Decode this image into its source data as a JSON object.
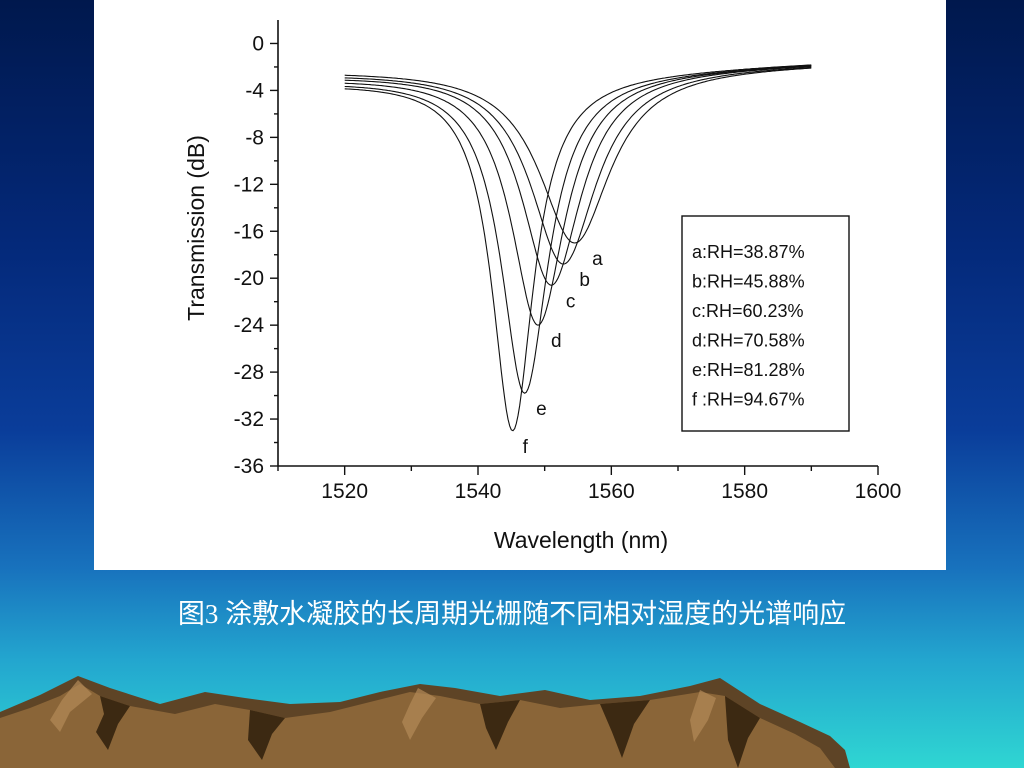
{
  "caption": "图3 涂敷水凝胶的长周期光栅随不同相对湿度的光谱响应",
  "colors": {
    "background_top": "#00184d",
    "background_bottom": "#2fd6d2",
    "caption": "#ffffff",
    "mountain_brown": "#7a5a34",
    "mountain_shadow": "#2e1e0c"
  },
  "chart_data": {
    "type": "line",
    "xlabel": "Wavelength (nm)",
    "ylabel": "Transmission (dB)",
    "xlim": [
      1510,
      1600
    ],
    "ylim": [
      -36,
      2
    ],
    "x_ticks": [
      1520,
      1540,
      1560,
      1580,
      1600
    ],
    "y_ticks": [
      0,
      -4,
      -8,
      -12,
      -16,
      -20,
      -24,
      -28,
      -32,
      -36
    ],
    "grid": false,
    "legend_position": "right",
    "series": [
      {
        "label": "a",
        "legend": "a:RH=38.87%",
        "x_range": [
          1520,
          1590
        ],
        "baseline_left": -2.2,
        "baseline_right": -1.6,
        "dip_wavelength": 1554.5,
        "dip_depth": -17.0,
        "hwhm": 6.5
      },
      {
        "label": "b",
        "legend": "b:RH=45.88%",
        "x_range": [
          1520,
          1590
        ],
        "baseline_left": -2.4,
        "baseline_right": -1.6,
        "dip_wavelength": 1552.8,
        "dip_depth": -18.8,
        "hwhm": 6.0
      },
      {
        "label": "c",
        "legend": "c:RH=60.23%",
        "x_range": [
          1520,
          1590
        ],
        "baseline_left": -2.6,
        "baseline_right": -1.6,
        "dip_wavelength": 1551.0,
        "dip_depth": -20.6,
        "hwhm": 5.4
      },
      {
        "label": "d",
        "legend": "d:RH=70.58%",
        "x_range": [
          1520,
          1590
        ],
        "baseline_left": -2.8,
        "baseline_right": -1.6,
        "dip_wavelength": 1549.0,
        "dip_depth": -24.0,
        "hwhm": 4.9
      },
      {
        "label": "e",
        "legend": "e:RH=81.28%",
        "x_range": [
          1520,
          1590
        ],
        "baseline_left": -3.0,
        "baseline_right": -1.6,
        "dip_wavelength": 1547.0,
        "dip_depth": -29.8,
        "hwhm": 4.3
      },
      {
        "label": "f",
        "legend": "f :RH=94.67%",
        "x_range": [
          1520,
          1590
        ],
        "baseline_left": -3.2,
        "baseline_right": -1.6,
        "dip_wavelength": 1545.2,
        "dip_depth": -33.0,
        "hwhm": 3.8
      }
    ]
  }
}
